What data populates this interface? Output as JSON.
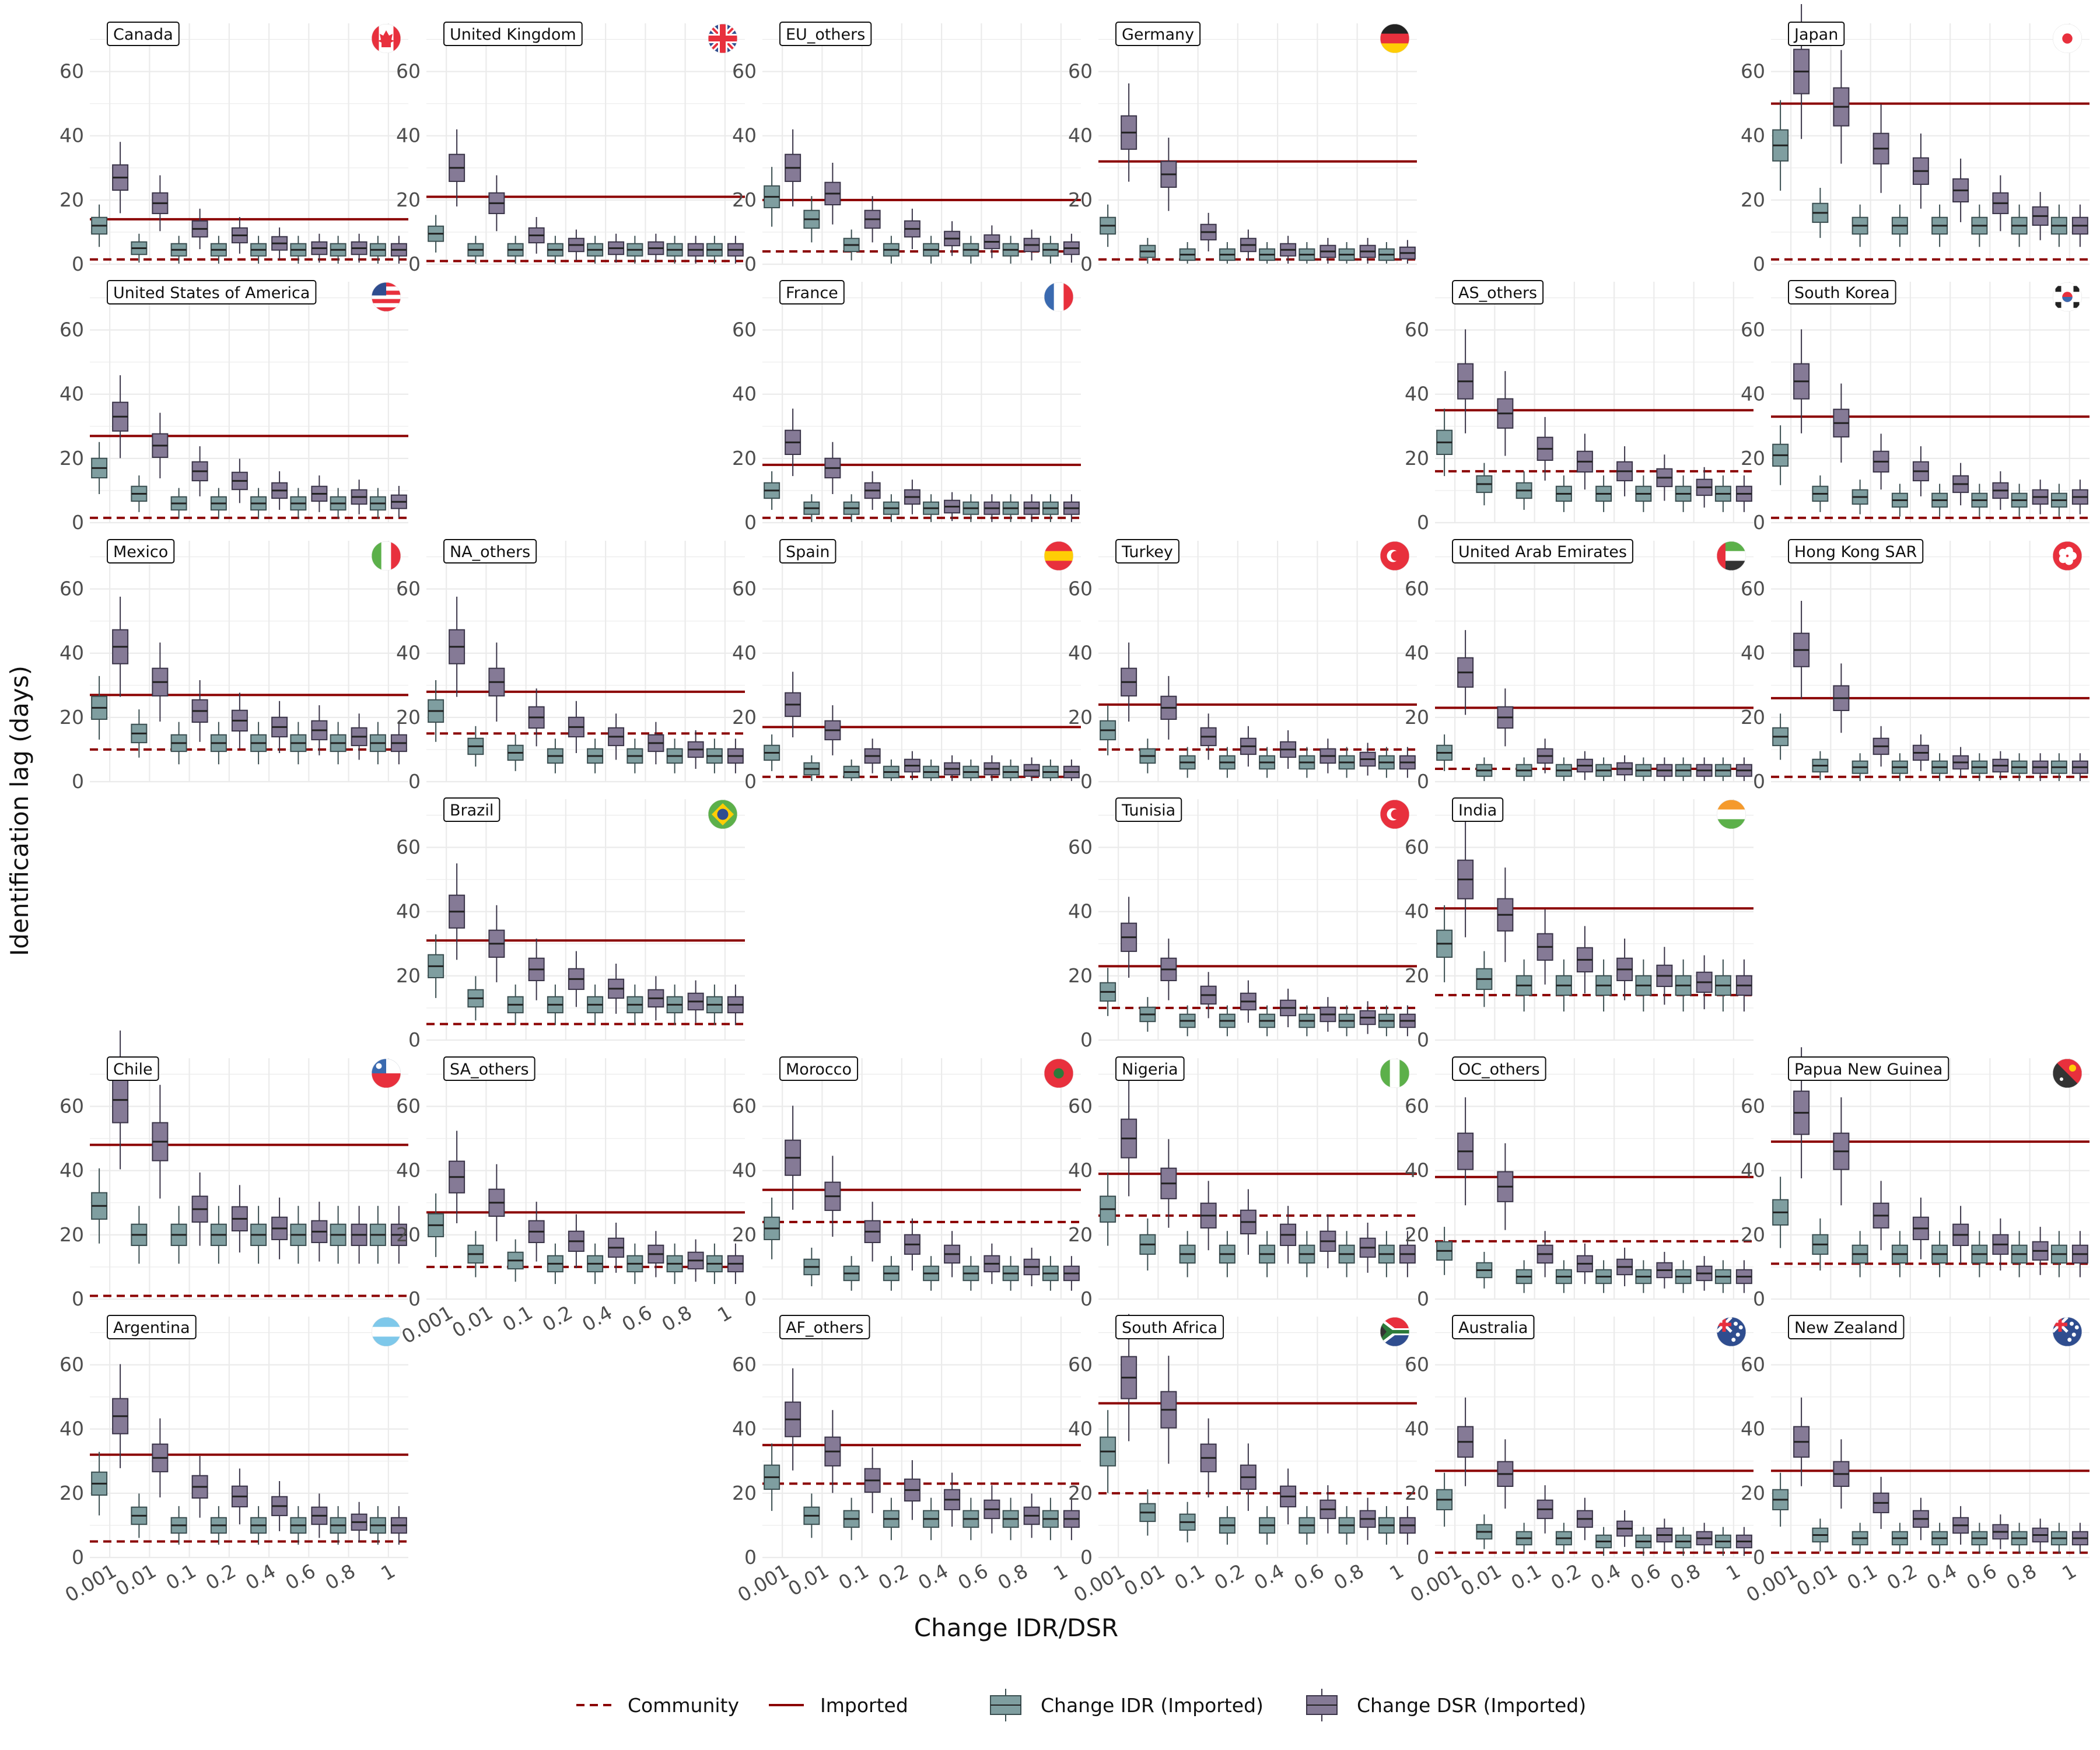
{
  "chart_data": {
    "type": "boxplot",
    "xlabel": "Change IDR/DSR",
    "ylabel": "Identification lag (days)",
    "x_categories": [
      "0.001",
      "0.01",
      "0.1",
      "0.2",
      "0.4",
      "0.6",
      "0.8",
      "1"
    ],
    "y_ticks": [
      0,
      20,
      40,
      60
    ],
    "ylim": [
      0,
      75
    ],
    "grid": true,
    "legend": {
      "position": "bottom",
      "lines": [
        {
          "label": "Community",
          "style": "dashed",
          "color": "#8b0000"
        },
        {
          "label": "Imported",
          "style": "solid",
          "color": "#8b0000"
        }
      ],
      "boxes": [
        {
          "label": "Change IDR (Imported)",
          "color": "#7f9ea0"
        },
        {
          "label": "Change DSR (Imported)",
          "color": "#857a96"
        }
      ]
    },
    "facets": [
      {
        "name": "Canada",
        "row": 0,
        "col": 0,
        "imported": 14,
        "community": 1.5,
        "idr": [
          12,
          5,
          4.5,
          4.5,
          4.5,
          4.5,
          4.5,
          4.5
        ],
        "dsr": [
          27,
          19,
          11,
          9,
          6.5,
          5,
          5,
          4.5
        ],
        "flag": {
          "type": "circle",
          "colors": [
            "#ffffff",
            "#e8303d"
          ],
          "symbol": "leaf"
        }
      },
      {
        "name": "United Kingdom",
        "row": 0,
        "col": 1,
        "imported": 21,
        "community": 1,
        "idr": [
          9.5,
          4.5,
          4.5,
          4.5,
          4.5,
          4.5,
          4.5,
          4.5
        ],
        "dsr": [
          30,
          19,
          9,
          6,
          5,
          5,
          4.5,
          4.5
        ],
        "flag": {
          "type": "uk"
        }
      },
      {
        "name": "EU_others",
        "row": 0,
        "col": 2,
        "imported": 20,
        "community": 4,
        "idr": [
          21,
          14,
          6,
          4.5,
          4.5,
          4.5,
          4.5,
          4.5
        ],
        "dsr": [
          30,
          22,
          14,
          11,
          8,
          7,
          6,
          5
        ],
        "flag": {
          "type": "none"
        }
      },
      {
        "name": "Germany",
        "row": 0,
        "col": 3,
        "imported": 32,
        "community": 1.5,
        "idr": [
          12,
          4,
          3,
          3,
          3,
          3,
          3,
          3
        ],
        "dsr": [
          41,
          28,
          10,
          6,
          4.5,
          4,
          4,
          3.5
        ],
        "flag": {
          "type": "hstripes",
          "colors": [
            "#222222",
            "#e8303d",
            "#ffcd05"
          ]
        }
      },
      {
        "name": "Japan",
        "row": 0,
        "col": 5,
        "imported": 50,
        "community": 1.5,
        "idr": [
          37,
          16,
          12,
          12,
          12,
          12,
          12,
          12
        ],
        "dsr": [
          60,
          49,
          36,
          29,
          23,
          19,
          15,
          12
        ],
        "flag": {
          "type": "circle",
          "colors": [
            "#ffffff",
            "#e8303d"
          ],
          "symbol": "dot"
        }
      },
      {
        "name": "United States of America",
        "row": 1,
        "col": 0,
        "imported": 27,
        "community": 1.5,
        "idr": [
          17,
          9,
          6,
          6,
          6,
          6,
          6,
          6
        ],
        "dsr": [
          33,
          24,
          16,
          13,
          10,
          9,
          8,
          6.5
        ],
        "flag": {
          "type": "usa"
        }
      },
      {
        "name": "France",
        "row": 1,
        "col": 2,
        "imported": 18,
        "community": 1.5,
        "idr": [
          10,
          4.5,
          4.5,
          4.5,
          4.5,
          4.5,
          4.5,
          4.5
        ],
        "dsr": [
          25,
          17,
          10,
          8,
          5,
          4.5,
          4.5,
          4.5
        ],
        "flag": {
          "type": "vstripes",
          "colors": [
            "#3a6ab0",
            "#ffffff",
            "#e8303d"
          ]
        }
      },
      {
        "name": "AS_others",
        "row": 1,
        "col": 4,
        "imported": 35,
        "community": 16,
        "idr": [
          25,
          12,
          10,
          9,
          9,
          9,
          9,
          9
        ],
        "dsr": [
          44,
          34,
          23,
          19,
          16,
          14,
          11,
          9
        ],
        "flag": {
          "type": "none"
        }
      },
      {
        "name": "South Korea",
        "row": 1,
        "col": 5,
        "imported": 33,
        "community": 1.5,
        "idr": [
          21,
          9,
          8,
          7,
          7,
          7,
          7,
          7
        ],
        "dsr": [
          44,
          31,
          19,
          16,
          12,
          10,
          8,
          8
        ],
        "flag": {
          "type": "circle",
          "colors": [
            "#ffffff",
            "#e8303d"
          ],
          "symbol": "korea"
        }
      },
      {
        "name": "Mexico",
        "row": 2,
        "col": 0,
        "imported": 27,
        "community": 10,
        "idr": [
          23,
          15,
          12,
          12,
          12,
          12,
          12,
          12
        ],
        "dsr": [
          42,
          31,
          22,
          19,
          17,
          16,
          14,
          12
        ],
        "flag": {
          "type": "vstripes",
          "colors": [
            "#5cb04a",
            "#ffffff",
            "#e8303d"
          ]
        }
      },
      {
        "name": "NA_others",
        "row": 2,
        "col": 1,
        "imported": 28,
        "community": 15,
        "idr": [
          22,
          11,
          9,
          8,
          8,
          8,
          8,
          8
        ],
        "dsr": [
          42,
          31,
          20,
          17,
          14,
          12,
          10,
          8
        ],
        "flag": {
          "type": "none"
        }
      },
      {
        "name": "Spain",
        "row": 2,
        "col": 2,
        "imported": 17,
        "community": 1.5,
        "idr": [
          9,
          4,
          3,
          3,
          3,
          3,
          3,
          3
        ],
        "dsr": [
          24,
          16,
          8,
          5,
          4,
          4,
          3.5,
          3
        ],
        "flag": {
          "type": "hstripes",
          "colors": [
            "#e8303d",
            "#ffcd05",
            "#e8303d"
          ]
        }
      },
      {
        "name": "Turkey",
        "row": 2,
        "col": 3,
        "imported": 24,
        "community": 10,
        "idr": [
          16,
          8,
          6,
          6,
          6,
          6,
          6,
          6
        ],
        "dsr": [
          31,
          23,
          14,
          11,
          10,
          8,
          7,
          6
        ],
        "flag": {
          "type": "circle",
          "colors": [
            "#e8303d",
            "#ffffff"
          ],
          "symbol": "crescent"
        }
      },
      {
        "name": "United Arab Emirates",
        "row": 2,
        "col": 4,
        "imported": 23,
        "community": 4,
        "idr": [
          9,
          3.5,
          3.5,
          3.5,
          3.5,
          3.5,
          3.5,
          3.5
        ],
        "dsr": [
          34,
          20,
          8,
          5,
          4,
          3.5,
          3.5,
          3.5
        ],
        "flag": {
          "type": "uae"
        }
      },
      {
        "name": "Hong Kong SAR",
        "row": 2,
        "col": 5,
        "imported": 26,
        "community": 1.5,
        "idr": [
          14,
          5,
          4.5,
          4.5,
          4.5,
          4.5,
          4.5,
          4.5
        ],
        "dsr": [
          41,
          26,
          11,
          9,
          6,
          5,
          4.5,
          4.5
        ],
        "flag": {
          "type": "circle",
          "colors": [
            "#e8303d",
            "#ffffff"
          ],
          "symbol": "flower"
        }
      },
      {
        "name": "Brazil",
        "row": 3,
        "col": 1,
        "imported": 31,
        "community": 5,
        "idr": [
          23,
          13,
          11,
          11,
          11,
          11,
          11,
          11
        ],
        "dsr": [
          40,
          30,
          22,
          19,
          16,
          13,
          12,
          11
        ],
        "flag": {
          "type": "circle",
          "colors": [
            "#5cb04a",
            "#ffcd05"
          ],
          "symbol": "brazil"
        }
      },
      {
        "name": "Tunisia",
        "row": 3,
        "col": 3,
        "imported": 23,
        "community": 10,
        "idr": [
          15,
          8,
          6,
          6,
          6,
          6,
          6,
          6
        ],
        "dsr": [
          32,
          22,
          14,
          12,
          10,
          8,
          7,
          6
        ],
        "flag": {
          "type": "circle",
          "colors": [
            "#e8303d",
            "#ffffff"
          ],
          "symbol": "crescent"
        }
      },
      {
        "name": "India",
        "row": 3,
        "col": 4,
        "imported": 41,
        "community": 14,
        "idr": [
          30,
          19,
          17,
          17,
          17,
          17,
          17,
          17
        ],
        "dsr": [
          50,
          39,
          29,
          25,
          22,
          20,
          18,
          17
        ],
        "flag": {
          "type": "hstripes",
          "colors": [
            "#f59a2c",
            "#ffffff",
            "#5cb04a"
          ]
        }
      },
      {
        "name": "Chile",
        "row": 4,
        "col": 0,
        "imported": 48,
        "community": 1,
        "idr": [
          29,
          20,
          20,
          20,
          20,
          20,
          20,
          20
        ],
        "dsr": [
          62,
          49,
          28,
          25,
          22,
          21,
          20,
          20
        ],
        "flag": {
          "type": "hsplit",
          "colors": [
            "#3a6ab0",
            "#e8303d"
          ]
        }
      },
      {
        "name": "SA_others",
        "row": 4,
        "col": 1,
        "imported": 27,
        "community": 10,
        "idr": [
          23,
          14,
          12,
          11,
          11,
          11,
          11,
          11
        ],
        "dsr": [
          38,
          30,
          21,
          18,
          16,
          14,
          12,
          11
        ],
        "flag": {
          "type": "none"
        }
      },
      {
        "name": "Morocco",
        "row": 4,
        "col": 2,
        "imported": 34,
        "community": 24,
        "idr": [
          22,
          10,
          8,
          8,
          8,
          8,
          8,
          8
        ],
        "dsr": [
          44,
          32,
          21,
          17,
          14,
          11,
          10,
          8
        ],
        "flag": {
          "type": "circle",
          "colors": [
            "#e8303d",
            "#2d7a3a"
          ],
          "symbol": "dot"
        }
      },
      {
        "name": "Nigeria",
        "row": 4,
        "col": 3,
        "imported": 39,
        "community": 26,
        "idr": [
          28,
          17,
          14,
          14,
          14,
          14,
          14,
          14
        ],
        "dsr": [
          50,
          36,
          26,
          24,
          20,
          18,
          16,
          14
        ],
        "flag": {
          "type": "vstripes",
          "colors": [
            "#5cb04a",
            "#ffffff",
            "#5cb04a"
          ]
        }
      },
      {
        "name": "OC_others",
        "row": 4,
        "col": 4,
        "imported": 38,
        "community": 18,
        "idr": [
          15,
          9,
          7,
          7,
          7,
          7,
          7,
          7
        ],
        "dsr": [
          46,
          35,
          14,
          11,
          10,
          9,
          8,
          7
        ],
        "flag": {
          "type": "none"
        }
      },
      {
        "name": "Papua New Guinea",
        "row": 4,
        "col": 5,
        "imported": 49,
        "community": 11,
        "idr": [
          27,
          17,
          14,
          14,
          14,
          14,
          14,
          14
        ],
        "dsr": [
          58,
          46,
          26,
          22,
          20,
          17,
          15,
          14
        ],
        "flag": {
          "type": "png"
        }
      },
      {
        "name": "Argentina",
        "row": 5,
        "col": 0,
        "imported": 32,
        "community": 5,
        "idr": [
          23,
          13,
          10,
          10,
          10,
          10,
          10,
          10
        ],
        "dsr": [
          44,
          31,
          22,
          19,
          16,
          13,
          11,
          10
        ],
        "flag": {
          "type": "hstripes",
          "colors": [
            "#7ec8ea",
            "#ffffff",
            "#7ec8ea"
          ]
        }
      },
      {
        "name": "AF_others",
        "row": 5,
        "col": 2,
        "imported": 35,
        "community": 23,
        "idr": [
          25,
          13,
          12,
          12,
          12,
          12,
          12,
          12
        ],
        "dsr": [
          43,
          33,
          24,
          21,
          18,
          15,
          13,
          12
        ],
        "flag": {
          "type": "none"
        }
      },
      {
        "name": "South Africa",
        "row": 5,
        "col": 3,
        "imported": 48,
        "community": 20,
        "idr": [
          33,
          14,
          11,
          10,
          10,
          10,
          10,
          10
        ],
        "dsr": [
          56,
          46,
          31,
          25,
          19,
          15,
          12,
          10
        ],
        "flag": {
          "type": "rsa"
        }
      },
      {
        "name": "Australia",
        "row": 5,
        "col": 4,
        "imported": 27,
        "community": 1.5,
        "idr": [
          18,
          8,
          6,
          6,
          5,
          5,
          5,
          5
        ],
        "dsr": [
          36,
          26,
          15,
          12,
          9,
          7,
          6,
          5
        ],
        "flag": {
          "type": "oz"
        }
      },
      {
        "name": "New Zealand",
        "row": 5,
        "col": 5,
        "imported": 27,
        "community": 1.5,
        "idr": [
          18,
          7,
          6,
          6,
          6,
          6,
          6,
          6
        ],
        "dsr": [
          36,
          26,
          17,
          12,
          10,
          8,
          7,
          6
        ],
        "flag": {
          "type": "oz"
        }
      }
    ]
  }
}
